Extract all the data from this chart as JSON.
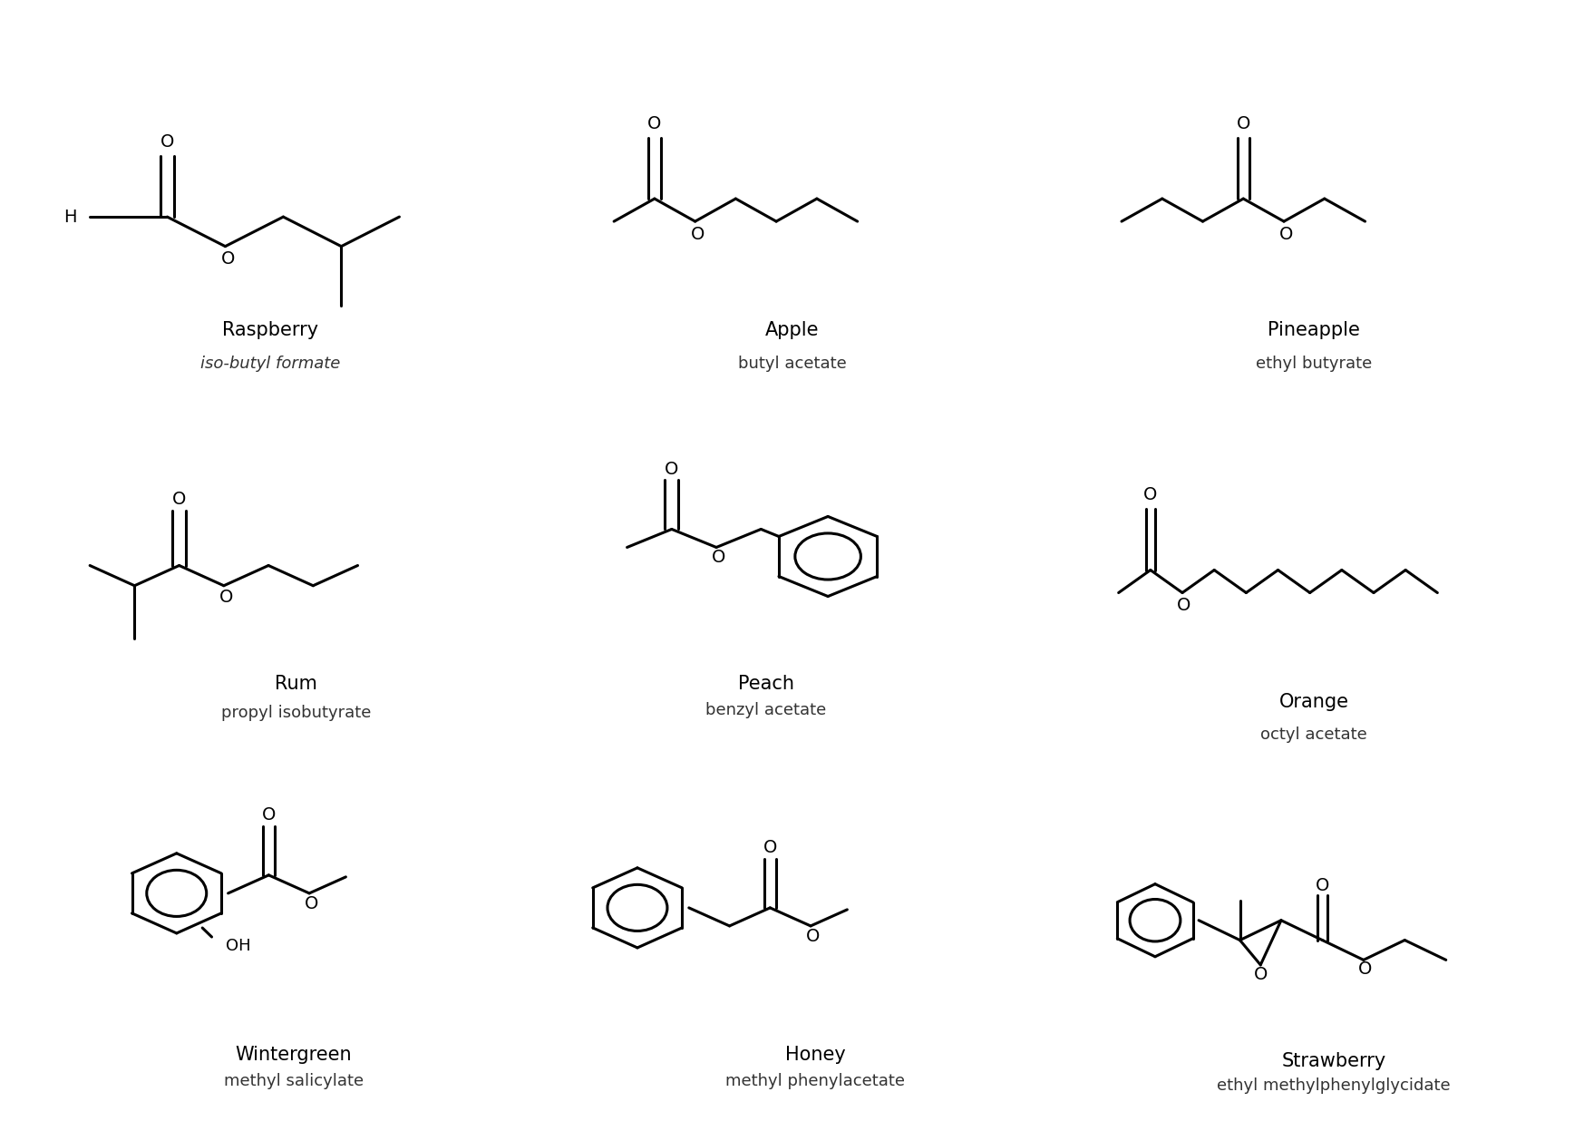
{
  "bg_color": "#ffffff",
  "line_color": "#000000",
  "lw": 2.2,
  "bl": 1.0,
  "labels": [
    [
      "Raspberry",
      "iso-butyl formate"
    ],
    [
      "Apple",
      "butyl acetate"
    ],
    [
      "Pineapple",
      "ethyl butyrate"
    ],
    [
      "Rum",
      "propyl isobutyrate"
    ],
    [
      "Peach",
      "benzyl acetate"
    ],
    [
      "Orange",
      "octyl acetate"
    ],
    [
      "Wintergreen",
      "methyl salicylate"
    ],
    [
      "Honey",
      "methyl phenylacetate"
    ],
    [
      "Strawberry",
      "ethyl methylphenylglycidate"
    ]
  ],
  "name_fontsize": 15,
  "chem_fontsize": 13
}
